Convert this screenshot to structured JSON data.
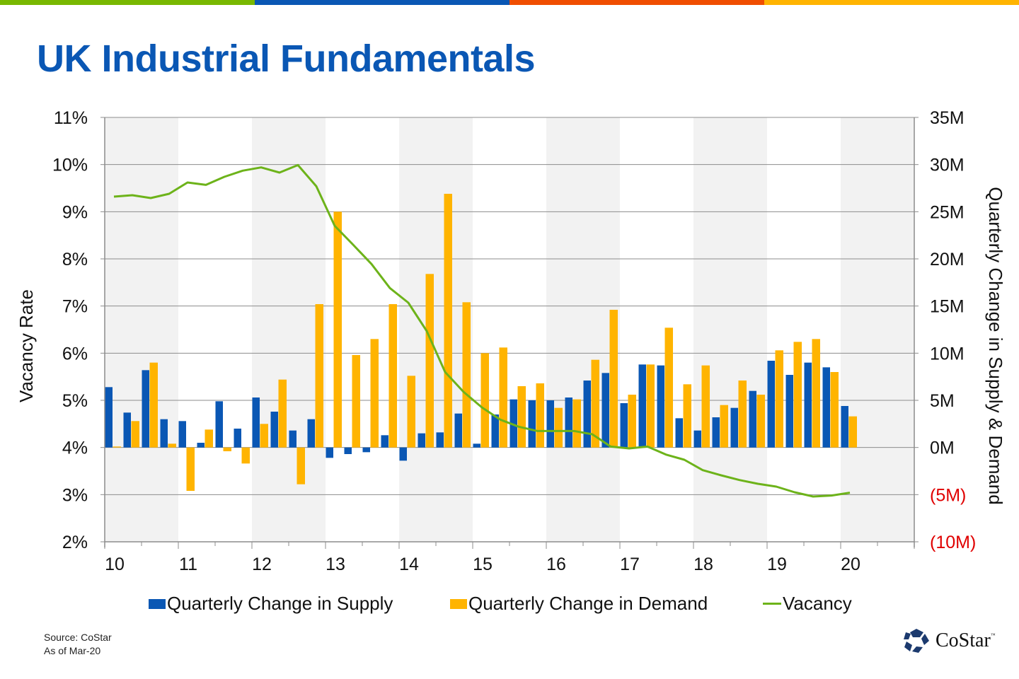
{
  "header": {
    "title": "UK Industrial Fundamentals",
    "top_bar_colors": [
      "#78b800",
      "#0a57b4",
      "#f04e00",
      "#ffb400"
    ]
  },
  "footer": {
    "source": "Source: CoStar",
    "as_of": "As of Mar-20"
  },
  "logo": {
    "name": "CoStar",
    "tm": "™",
    "icon": "costar-star-logo-icon",
    "color": "#1c3a6e"
  },
  "legend": {
    "supply": "Quarterly Change in Supply",
    "demand": "Quarterly Change in Demand",
    "vacancy": "Vacancy"
  },
  "colors": {
    "supply": "#0a57b4",
    "demand": "#ffb400",
    "vacancy": "#6db31a",
    "negative_tick": "#e00000",
    "band": "#f2f2f2",
    "grid": "#8c8c8c"
  },
  "chart_data": {
    "type": "bar+line",
    "title": "UK Industrial Fundamentals",
    "xlabel": "",
    "ylabel_left": "Vacancy Rate",
    "ylabel_right": "Quarterly Change in Supply & Demand",
    "x_tick_labels": [
      "10",
      "11",
      "12",
      "13",
      "14",
      "15",
      "16",
      "17",
      "18",
      "19",
      "20"
    ],
    "x_range_years": [
      2010,
      2021
    ],
    "ylim_left": [
      2,
      11
    ],
    "y_ticks_left": [
      "11%",
      "10%",
      "9%",
      "8%",
      "7%",
      "6%",
      "5%",
      "4%",
      "3%",
      "2%"
    ],
    "ylim_right": [
      -10,
      35
    ],
    "y_ticks_right": [
      "35M",
      "30M",
      "25M",
      "20M",
      "15M",
      "10M",
      "5M",
      "0M",
      "(5M)",
      "(10M)"
    ],
    "grid": true,
    "legend_position": "bottom",
    "quarters": [
      "2010Q1",
      "2010Q2",
      "2010Q3",
      "2010Q4",
      "2011Q1",
      "2011Q2",
      "2011Q3",
      "2011Q4",
      "2012Q1",
      "2012Q2",
      "2012Q3",
      "2012Q4",
      "2013Q1",
      "2013Q2",
      "2013Q3",
      "2013Q4",
      "2014Q1",
      "2014Q2",
      "2014Q3",
      "2014Q4",
      "2015Q1",
      "2015Q2",
      "2015Q3",
      "2015Q4",
      "2016Q1",
      "2016Q2",
      "2016Q3",
      "2016Q4",
      "2017Q1",
      "2017Q2",
      "2017Q3",
      "2017Q4",
      "2018Q1",
      "2018Q2",
      "2018Q3",
      "2018Q4",
      "2019Q1",
      "2019Q2",
      "2019Q3",
      "2019Q4",
      "2020Q1"
    ],
    "series": [
      {
        "name": "Quarterly Change in Supply",
        "axis": "right",
        "type": "bar",
        "unit": "M sq ft",
        "values": [
          6.4,
          3.7,
          8.2,
          3.0,
          2.8,
          0.5,
          4.9,
          2.0,
          5.3,
          3.8,
          1.8,
          3.0,
          -1.1,
          -0.7,
          -0.5,
          1.3,
          -1.4,
          1.5,
          1.6,
          3.6,
          0.4,
          3.5,
          5.1,
          5.0,
          5.0,
          5.3,
          7.1,
          7.9,
          4.7,
          8.8,
          8.7,
          3.1,
          1.8,
          3.2,
          4.2,
          6.0,
          9.2,
          7.7,
          9.0,
          8.5,
          4.4
        ]
      },
      {
        "name": "Quarterly Change in Demand",
        "axis": "right",
        "type": "bar",
        "unit": "M sq ft",
        "values": [
          0.1,
          2.8,
          9.0,
          0.4,
          -4.6,
          1.9,
          -0.4,
          -1.7,
          2.5,
          7.2,
          -3.9,
          15.2,
          25.0,
          9.8,
          11.5,
          15.2,
          7.6,
          18.4,
          26.9,
          15.4,
          10.0,
          10.6,
          6.5,
          6.8,
          4.2,
          5.1,
          9.3,
          14.6,
          5.6,
          8.8,
          12.7,
          6.7,
          8.7,
          4.5,
          7.1,
          5.6,
          10.3,
          11.2,
          11.5,
          8.0,
          3.3
        ]
      },
      {
        "name": "Vacancy",
        "axis": "left",
        "type": "line",
        "unit": "%",
        "values": [
          9.32,
          9.35,
          9.29,
          9.38,
          9.62,
          9.57,
          9.74,
          9.87,
          9.94,
          9.83,
          9.99,
          9.54,
          8.7,
          8.3,
          7.89,
          7.38,
          7.07,
          6.47,
          5.6,
          5.18,
          4.85,
          4.59,
          4.44,
          4.35,
          4.35,
          4.35,
          4.28,
          4.02,
          3.98,
          4.02,
          3.85,
          3.74,
          3.52,
          3.41,
          3.31,
          3.23,
          3.17,
          3.05,
          2.96,
          2.98,
          3.04
        ]
      }
    ]
  }
}
